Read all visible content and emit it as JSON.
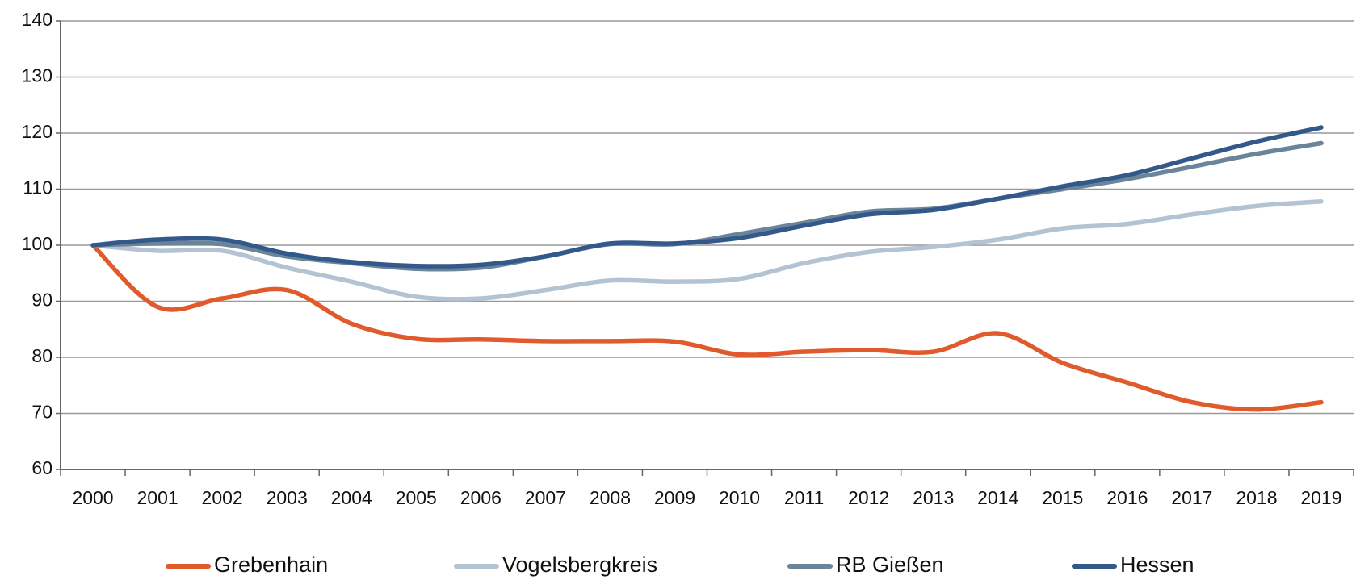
{
  "chart_data": {
    "type": "line",
    "categories": [
      "2000",
      "2001",
      "2002",
      "2003",
      "2004",
      "2005",
      "2006",
      "2007",
      "2008",
      "2009",
      "2010",
      "2011",
      "2012",
      "2013",
      "2014",
      "2015",
      "2016",
      "2017",
      "2018",
      "2019"
    ],
    "series": [
      {
        "name": "Grebenhain",
        "color": "#e05a2b",
        "values": [
          100,
          89,
          90.5,
          92,
          86,
          83.3,
          83.2,
          82.9,
          82.9,
          82.8,
          80.5,
          81,
          81.3,
          81,
          84.3,
          79,
          75.5,
          72,
          70.7,
          72
        ]
      },
      {
        "name": "Vogelsbergkreis",
        "color": "#b4c3d1",
        "values": [
          100,
          99,
          99,
          96,
          93.5,
          90.8,
          90.5,
          92,
          93.7,
          93.5,
          94,
          96.8,
          98.8,
          99.7,
          101,
          103,
          103.8,
          105.5,
          107,
          107.8
        ]
      },
      {
        "name": "RB Gießen",
        "color": "#6a8499",
        "values": [
          100,
          100.3,
          100.2,
          98,
          96.8,
          95.8,
          96,
          98,
          100.2,
          100.2,
          102,
          104,
          106,
          106.5,
          108.3,
          110,
          111.8,
          114,
          116.3,
          118.2
        ]
      },
      {
        "name": "Hessen",
        "color": "#33588a",
        "values": [
          100,
          101,
          101,
          98.5,
          97,
          96.3,
          96.5,
          98,
          100.3,
          100.3,
          101.3,
          103.5,
          105.5,
          106.3,
          108.3,
          110.5,
          112.5,
          115.5,
          118.5,
          121
        ]
      }
    ],
    "ylim": [
      60,
      140
    ],
    "yticks": [
      60,
      70,
      80,
      90,
      100,
      110,
      120,
      130,
      140
    ],
    "grid": true,
    "legend": "bottom"
  }
}
